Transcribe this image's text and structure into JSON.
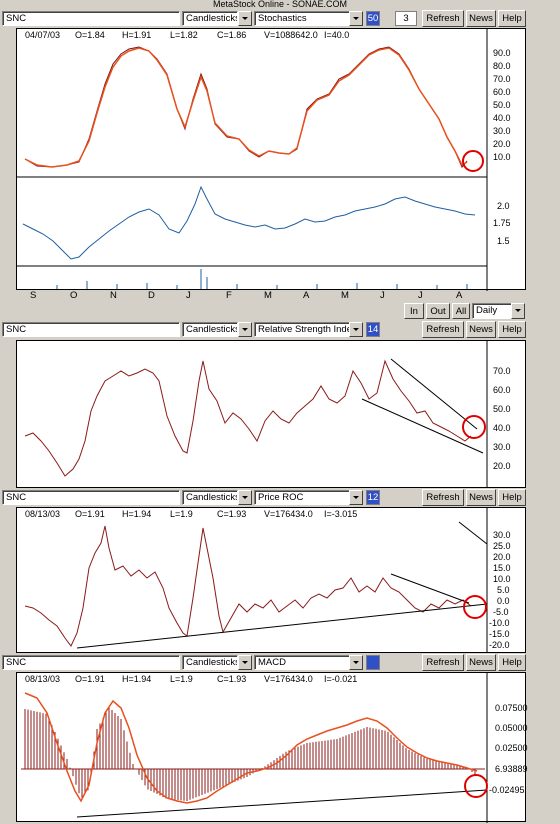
{
  "window": {
    "title": "MetaStock Online - SONAE.COM"
  },
  "panes": [
    {
      "symbol": "SNC",
      "chart_type": "Candlesticks",
      "indicator": "Stochastics",
      "param1": "50",
      "param2": "3",
      "buttons": {
        "refresh": "Refresh",
        "news": "News",
        "help": "Help"
      },
      "info": {
        "date": "04/07/03",
        "open": "O=1.84",
        "high": "H=1.91",
        "low": "L=1.82",
        "close": "C=1.86",
        "volume": "V=1088642.0",
        "indicator": "I=40.0"
      },
      "y_labels": [
        "90.0",
        "80.0",
        "70.0",
        "60.0",
        "50.0",
        "40.0",
        "30.0",
        "20.0",
        "10.0"
      ],
      "price_labels": [
        "2.0",
        "1.75",
        "1.5"
      ]
    },
    {
      "symbol": "SNC",
      "chart_type": "Candlesticks",
      "indicator": "Relative Strength Index",
      "param1": "14",
      "buttons": {
        "refresh": "Refresh",
        "news": "News",
        "help": "Help"
      },
      "y_labels": [
        "70.0",
        "60.0",
        "50.0",
        "40.0",
        "30.0",
        "20.0"
      ]
    },
    {
      "symbol": "SNC",
      "chart_type": "Candlesticks",
      "indicator": "Price ROC",
      "param1": "12",
      "buttons": {
        "refresh": "Refresh",
        "news": "News",
        "help": "Help"
      },
      "info": {
        "date": "08/13/03",
        "open": "O=1.91",
        "high": "H=1.94",
        "low": "L=1.9",
        "close": "C=1.93",
        "volume": "V=176434.0",
        "indicator": "I=-3.015"
      },
      "y_labels": [
        "30.0",
        "25.0",
        "20.0",
        "15.0",
        "10.0",
        "5.0",
        "0.0",
        "-5.0",
        "-10.0",
        "-15.0",
        "-20.0"
      ]
    },
    {
      "symbol": "SNC",
      "chart_type": "Candlesticks",
      "indicator": "MACD",
      "param1": "",
      "buttons": {
        "refresh": "Refresh",
        "news": "News",
        "help": "Help"
      },
      "info": {
        "date": "08/13/03",
        "open": "O=1.91",
        "high": "H=1.94",
        "low": "L=1.9",
        "close": "C=1.93",
        "volume": "V=176434.0",
        "indicator": "I=-0.021"
      },
      "y_labels": [
        "0.07500",
        "0.05000",
        "0.02500",
        "6.93889",
        "-0.02495"
      ]
    }
  ],
  "months": [
    "S",
    "O",
    "N",
    "D",
    "J",
    "F",
    "M",
    "A",
    "M",
    "J",
    "J",
    "A"
  ],
  "period": {
    "in": "In",
    "out": "Out",
    "all": "All",
    "daily": "Daily"
  },
  "colors": {
    "indicator": "#e8501e",
    "price": "#1f5fa0",
    "rsi": "#8b1a1a",
    "macd_hist": "#8b1a1a",
    "circle": "#e00000"
  }
}
